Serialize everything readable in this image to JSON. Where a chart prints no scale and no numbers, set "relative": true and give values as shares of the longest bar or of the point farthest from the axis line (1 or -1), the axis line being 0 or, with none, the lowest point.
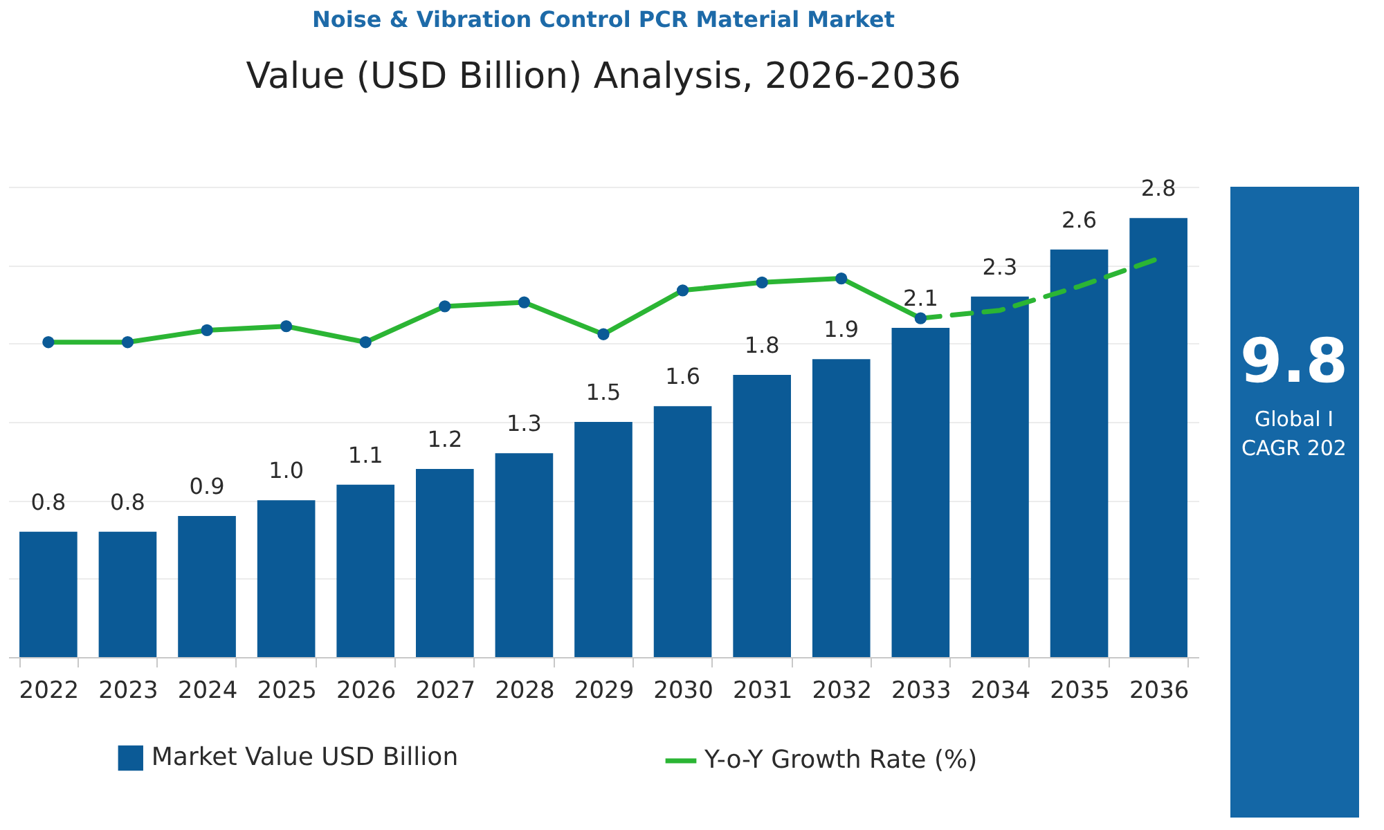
{
  "chart_data": [
    {
      "type": "bar",
      "title": "Noise & Vibration Control PCR Material Market",
      "subtitle": "Value (USD Billion) Analysis, 2026-2036",
      "categories": [
        "2022",
        "2023",
        "2024",
        "2025",
        "2026",
        "2027",
        "2028",
        "2029",
        "2030",
        "2031",
        "2032",
        "2033",
        "2034",
        "2035",
        "2036"
      ],
      "series": [
        {
          "name": "Market Value USD Billion",
          "color": "#0b5a96",
          "values": [
            0.8,
            0.8,
            0.9,
            1.0,
            1.1,
            1.2,
            1.3,
            1.5,
            1.6,
            1.8,
            1.9,
            2.1,
            2.3,
            2.6,
            2.8
          ],
          "value_labels": [
            "0.8",
            "0.8",
            "0.9",
            "1.0",
            "1.1",
            "1.2",
            "1.3",
            "1.5",
            "1.6",
            "1.8",
            "1.9",
            "2.1",
            "2.3",
            "2.6",
            "2.8"
          ]
        }
      ],
      "ylim": [
        0,
        3
      ],
      "yticks": [
        {
          "value": 0.5,
          "label": null
        },
        {
          "value": 1.0,
          "label": null
        },
        {
          "value": 1.5,
          "label": null
        },
        {
          "value": 2.0,
          "label": null
        },
        {
          "value": 2.5,
          "label": null
        },
        {
          "value": 3.0,
          "label": null
        }
      ],
      "grid": "y",
      "tick_labels": "x",
      "legend": "bottom"
    },
    {
      "type": "line",
      "relative": true,
      "tick_labels": false,
      "legend": "bottom",
      "categories": [
        "2022",
        "2023",
        "2024",
        "2025",
        "2026",
        "2027",
        "2028",
        "2029",
        "2030",
        "2031",
        "2032",
        "2033",
        "2034",
        "2035",
        "2036"
      ],
      "series": [
        {
          "name": "Y-o-Y Growth Rate (%)",
          "color": "#2bb534",
          "marker": "circle",
          "line_style": "solid",
          "colors": [
            "#0b5a96",
            "#0b5a96",
            "#0b5a96",
            "#0b5a96",
            "#0b5a96",
            "#0b5a96",
            "#0b5a96",
            "#0b5a96",
            "#0b5a96",
            "#0b5a96",
            "#0b5a96",
            "#0b5a96",
            null,
            null,
            null
          ],
          "values": [
            0.79,
            0.79,
            0.82,
            0.83,
            0.79,
            0.88,
            0.89,
            0.81,
            0.92,
            0.94,
            0.95,
            0.85,
            null,
            null,
            null
          ]
        },
        {
          "color": "#2bb534",
          "marker": "none",
          "line_style": "dashed",
          "values": [
            null,
            null,
            null,
            null,
            null,
            null,
            null,
            null,
            null,
            null,
            null,
            0.85,
            0.87,
            0.93,
            1.0
          ]
        }
      ]
    },
    {
      "type": "other",
      "annotations": [
        "9.8",
        "Global I",
        "CAGR 202"
      ]
    }
  ]
}
